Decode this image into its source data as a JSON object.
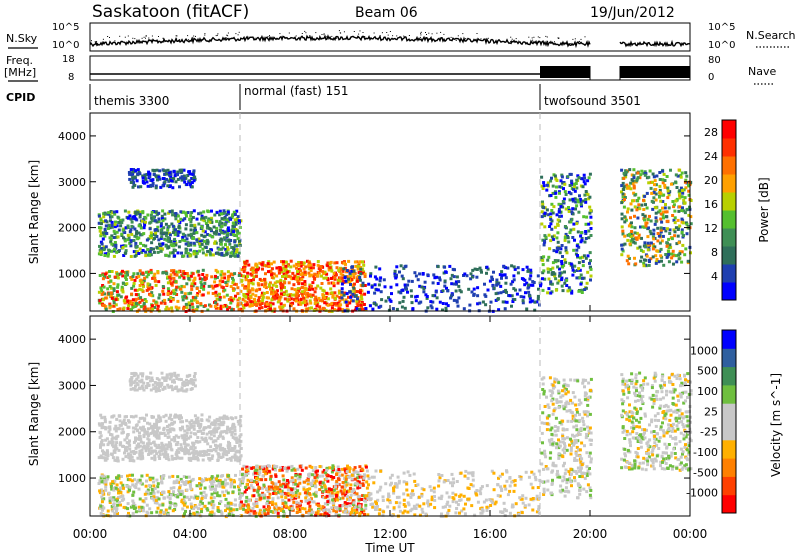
{
  "header": {
    "station": "Saskatoon (fitACF)",
    "beam": "Beam 06",
    "date": "19/Jun/2012"
  },
  "left_labels": {
    "nsky": "N.Sky",
    "freq_line1": "Freq.",
    "freq_line2": "[MHz]",
    "cpid": "CPID"
  },
  "right_labels": {
    "nsearch": "N.Search",
    "nave": "Nave"
  },
  "cpid_segments": [
    {
      "label": "themis 3300",
      "start": "00:00",
      "end": "06:00"
    },
    {
      "label": "normal (fast) 151",
      "start": "06:00",
      "end": "18:00"
    },
    {
      "label": "twofsound 3501",
      "start": "18:00",
      "end": "24:00"
    }
  ],
  "colors": {
    "power": [
      "#0000ff",
      "#1f3fb0",
      "#2f6f5a",
      "#3f8f55",
      "#55bf2f",
      "#b8d000",
      "#ffa000",
      "#ff7000",
      "#ff3000",
      "#ff0000"
    ],
    "velocity": [
      "#ff0000",
      "#ff4000",
      "#ff8000",
      "#ffb000",
      "#c8c8c8",
      "#c8c8c8",
      "#6fbf3f",
      "#3f8f55",
      "#2f5f9f",
      "#0000ff"
    ]
  },
  "chart_data": [
    {
      "type": "line",
      "panel": "noise",
      "ylabel_left": "N.Sky",
      "ylabel_right": "N.Search",
      "left_ticks": [
        "10^5",
        "10^0"
      ],
      "right_ticks": [
        "10^5",
        "10^0"
      ],
      "x_range": [
        "00:00",
        "24:00"
      ]
    },
    {
      "type": "line",
      "panel": "frequency",
      "ylabel_left": "Freq. [MHz]",
      "ylabel_right": "Nave",
      "left_ticks": [
        18,
        8
      ],
      "right_ticks": [
        80,
        0
      ],
      "x_range": [
        "00:00",
        "24:00"
      ]
    },
    {
      "type": "heatmap",
      "panel": "power",
      "ylabel": "Slant Range [km]",
      "yticks": [
        1000,
        2000,
        3000,
        4000
      ],
      "ylim": [
        180,
        4500
      ],
      "colorbar_label": "Power [dB]",
      "colorbar_ticks": [
        4,
        8,
        12,
        16,
        20,
        24,
        28
      ],
      "colorbar_range": [
        0,
        30
      ]
    },
    {
      "type": "heatmap",
      "panel": "velocity",
      "ylabel": "Slant Range [km]",
      "yticks": [
        1000,
        2000,
        3000,
        4000
      ],
      "ylim": [
        180,
        4500
      ],
      "colorbar_label": "Velocity [m s^-1]",
      "colorbar_ticks": [
        1000,
        500,
        100,
        25,
        -25,
        -100,
        -500,
        -1000
      ],
      "xticks": [
        "00:00",
        "04:00",
        "08:00",
        "12:00",
        "16:00",
        "20:00",
        "00:00"
      ],
      "xlabel": "Time UT"
    }
  ]
}
